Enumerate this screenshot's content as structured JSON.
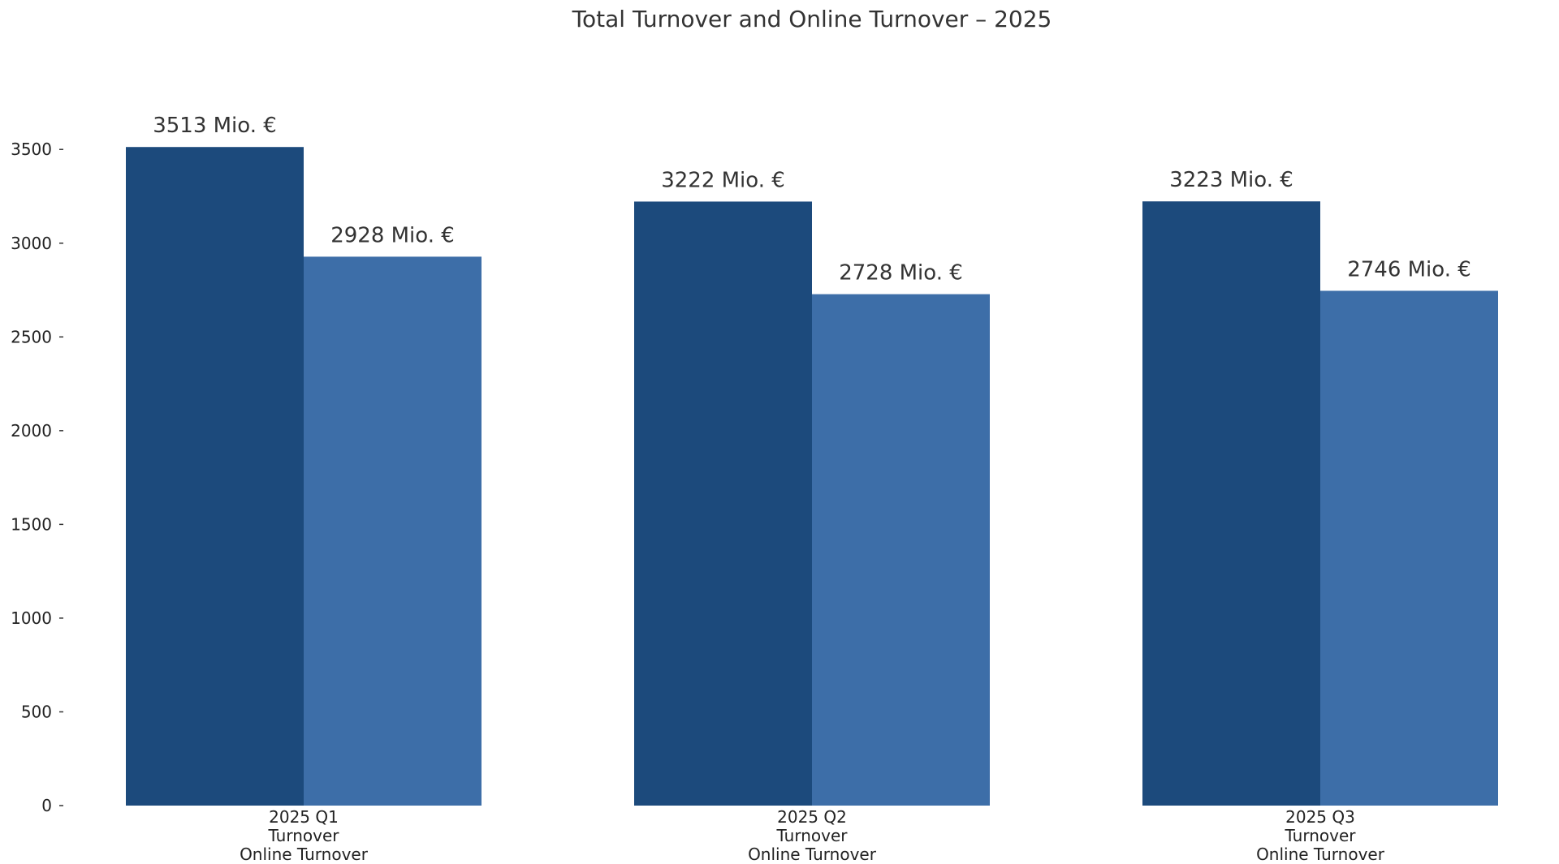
{
  "chart_data": {
    "type": "bar",
    "title": "Total Turnover and Online Turnover – 2025",
    "xlabel": "",
    "ylabel": "",
    "categories": [
      "2025 Q1",
      "2025 Q2",
      "2025 Q3"
    ],
    "category_sublabels": [
      [
        "Turnover",
        "Online Turnover"
      ],
      [
        "Turnover",
        "Online Turnover"
      ],
      [
        "Turnover",
        "Online Turnover"
      ]
    ],
    "series": [
      {
        "values": [
          3513,
          3222,
          3223
        ],
        "labels": [
          "3513 Mio. €",
          "3222 Mio. €",
          "3223 Mio. €"
        ],
        "color": "#1c4a7c"
      },
      {
        "values": [
          2928,
          2728,
          2746
        ],
        "labels": [
          "2928 Mio. €",
          "2728 Mio. €",
          "2746 Mio. €"
        ],
        "color": "#3d6ea8"
      }
    ],
    "ylim": [
      0,
      3700
    ],
    "yticks": [
      0,
      500,
      1000,
      1500,
      2000,
      2500,
      3000,
      3500
    ],
    "ytick_labels": [
      "0",
      "500",
      "1000",
      "1500",
      "2000",
      "2500",
      "3000",
      "3500"
    ],
    "grid": false,
    "legend": "none"
  }
}
